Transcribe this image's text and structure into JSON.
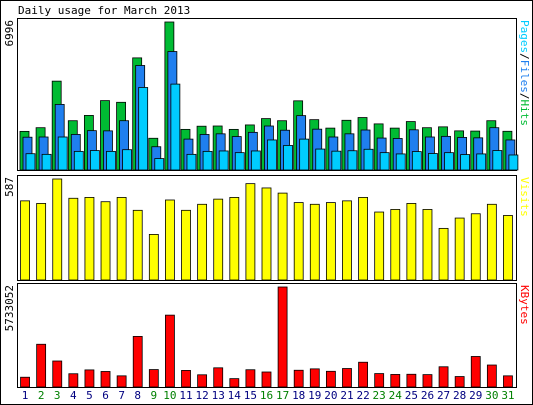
{
  "chart_data": {
    "type": "bar",
    "title": "Daily usage for March 2013",
    "categories": [
      "1",
      "2",
      "3",
      "4",
      "5",
      "6",
      "7",
      "8",
      "9",
      "10",
      "11",
      "12",
      "13",
      "14",
      "15",
      "16",
      "17",
      "18",
      "19",
      "20",
      "21",
      "22",
      "23",
      "24",
      "25",
      "26",
      "27",
      "28",
      "29",
      "30",
      "31"
    ],
    "weekend_days": [
      "2",
      "3",
      "9",
      "10",
      "16",
      "17",
      "23",
      "24",
      "30",
      "31"
    ],
    "colors": {
      "hits": "#00bb33",
      "files": "#1f7fef",
      "pages": "#00ccff",
      "visits": "#ffff00",
      "kbytes": "#ff0000",
      "weekday_label": "#000080",
      "weekend_label": "#008000"
    },
    "panels": [
      {
        "name": "Pages/Files/Hits",
        "max_label": "6996",
        "ylim": [
          0,
          6996
        ],
        "legend": [
          {
            "text": "Pages",
            "color": "#00ccff"
          },
          {
            "text": "/",
            "color": "#000000"
          },
          {
            "text": "Files",
            "color": "#1f7fef"
          },
          {
            "text": "/",
            "color": "#000000"
          },
          {
            "text": "Hits",
            "color": "#00bb33"
          }
        ],
        "series": [
          {
            "name": "Hits",
            "values": [
              1826,
              2000,
              4200,
              2330,
              2580,
              3280,
              3200,
              5300,
              1500,
              6996,
              1920,
              2070,
              2080,
              1920,
              2130,
              2430,
              2330,
              3270,
              2380,
              1980,
              2350,
              2480,
              2180,
              1980,
              2290,
              2000,
              2040,
              1850,
              1840,
              2330,
              1830
            ]
          },
          {
            "name": "Files",
            "values": [
              1550,
              1560,
              3100,
              1680,
              1860,
              1850,
              2330,
              4940,
              1100,
              5600,
              1460,
              1680,
              1710,
              1580,
              1780,
              2080,
              1880,
              2570,
              1930,
              1560,
              1710,
              1890,
              1510,
              1490,
              1900,
              1560,
              1590,
              1540,
              1520,
              2000,
              1420
            ]
          },
          {
            "name": "Pages",
            "values": [
              770,
              740,
              1560,
              880,
              920,
              880,
              960,
              3900,
              540,
              4060,
              740,
              880,
              900,
              820,
              900,
              1420,
              1160,
              1460,
              990,
              890,
              910,
              980,
              820,
              760,
              870,
              780,
              820,
              730,
              760,
              920,
              710
            ]
          }
        ]
      },
      {
        "name": "Visits",
        "max_label": "587",
        "ylim": [
          0,
          587
        ],
        "legend": [
          {
            "text": "Visits",
            "color": "#ffff00"
          }
        ],
        "series": [
          {
            "name": "Visits",
            "values": [
              460,
              445,
              587,
              475,
              480,
              455,
              480,
              405,
              265,
              465,
              405,
              440,
              470,
              480,
              560,
              535,
              505,
              450,
              440,
              450,
              460,
              480,
              395,
              410,
              445,
              410,
              300,
              360,
              385,
              440,
              375
            ]
          }
        ]
      },
      {
        "name": "KBytes",
        "max_label": "5733052",
        "ylim": [
          0,
          5733052
        ],
        "legend": [
          {
            "text": "KBytes",
            "color": "#ff0000"
          }
        ],
        "series": [
          {
            "name": "KBytes",
            "values": [
              560000,
              2450000,
              1490000,
              760000,
              980000,
              890000,
              640000,
              2900000,
              1000000,
              4120000,
              950000,
              700000,
              1100000,
              480000,
              990000,
              860000,
              5733052,
              960000,
              1040000,
              900000,
              1060000,
              1420000,
              770000,
              720000,
              730000,
              710000,
              1160000,
              600000,
              1750000,
              1260000,
              640000
            ]
          }
        ]
      }
    ]
  }
}
